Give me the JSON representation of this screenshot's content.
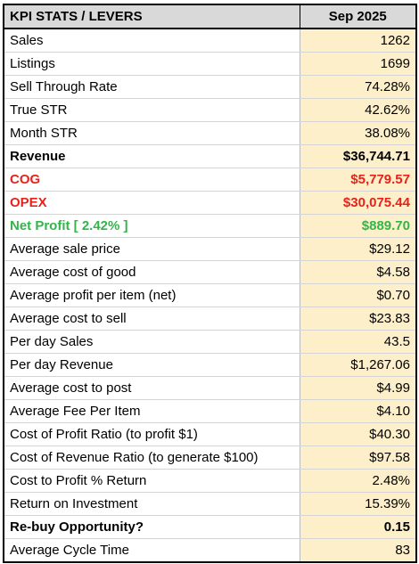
{
  "header": {
    "label": "KPI STATS / LEVERS",
    "period": "Sep 2025"
  },
  "rows": [
    {
      "label": "Sales",
      "value": "1262",
      "style": ""
    },
    {
      "label": "Listings",
      "value": "1699",
      "style": ""
    },
    {
      "label": "Sell Through Rate",
      "value": "74.28%",
      "style": ""
    },
    {
      "label": "True STR",
      "value": "42.62%",
      "style": ""
    },
    {
      "label": "Month STR",
      "value": "38.08%",
      "style": ""
    },
    {
      "label": "Revenue",
      "value": "$36,744.71",
      "style": "bold"
    },
    {
      "label": "COG",
      "value": "$5,779.57",
      "style": "red"
    },
    {
      "label": "OPEX",
      "value": "$30,075.44",
      "style": "red"
    },
    {
      "label": "Net Profit [ 2.42% ]",
      "value": "$889.70",
      "style": "green"
    },
    {
      "label": "Average sale price",
      "value": "$29.12",
      "style": ""
    },
    {
      "label": "Average cost of good",
      "value": "$4.58",
      "style": ""
    },
    {
      "label": "Average profit per item (net)",
      "value": "$0.70",
      "style": ""
    },
    {
      "label": "Average cost to sell",
      "value": "$23.83",
      "style": ""
    },
    {
      "label": "Per day Sales",
      "value": "43.5",
      "style": ""
    },
    {
      "label": "Per day Revenue",
      "value": "$1,267.06",
      "style": ""
    },
    {
      "label": "Average cost to post",
      "value": "$4.99",
      "style": ""
    },
    {
      "label": "Average Fee Per Item",
      "value": "$4.10",
      "style": ""
    },
    {
      "label": "Cost of Profit Ratio (to profit $1)",
      "value": "$40.30",
      "style": ""
    },
    {
      "label": "Cost of Revenue Ratio (to generate $100)",
      "value": "$97.58",
      "style": ""
    },
    {
      "label": "Cost to Profit % Return",
      "value": "2.48%",
      "style": ""
    },
    {
      "label": "Return on Investment",
      "value": "15.39%",
      "style": ""
    },
    {
      "label": "Re-buy Opportunity?",
      "value": "0.15",
      "style": "bold"
    },
    {
      "label": "Average Cycle Time",
      "value": "83",
      "style": ""
    }
  ],
  "colors": {
    "header_bg": "#d9d9d9",
    "value_bg": "#fcefc9",
    "negative_red": "#e8221b",
    "positive_green": "#33b54a"
  }
}
